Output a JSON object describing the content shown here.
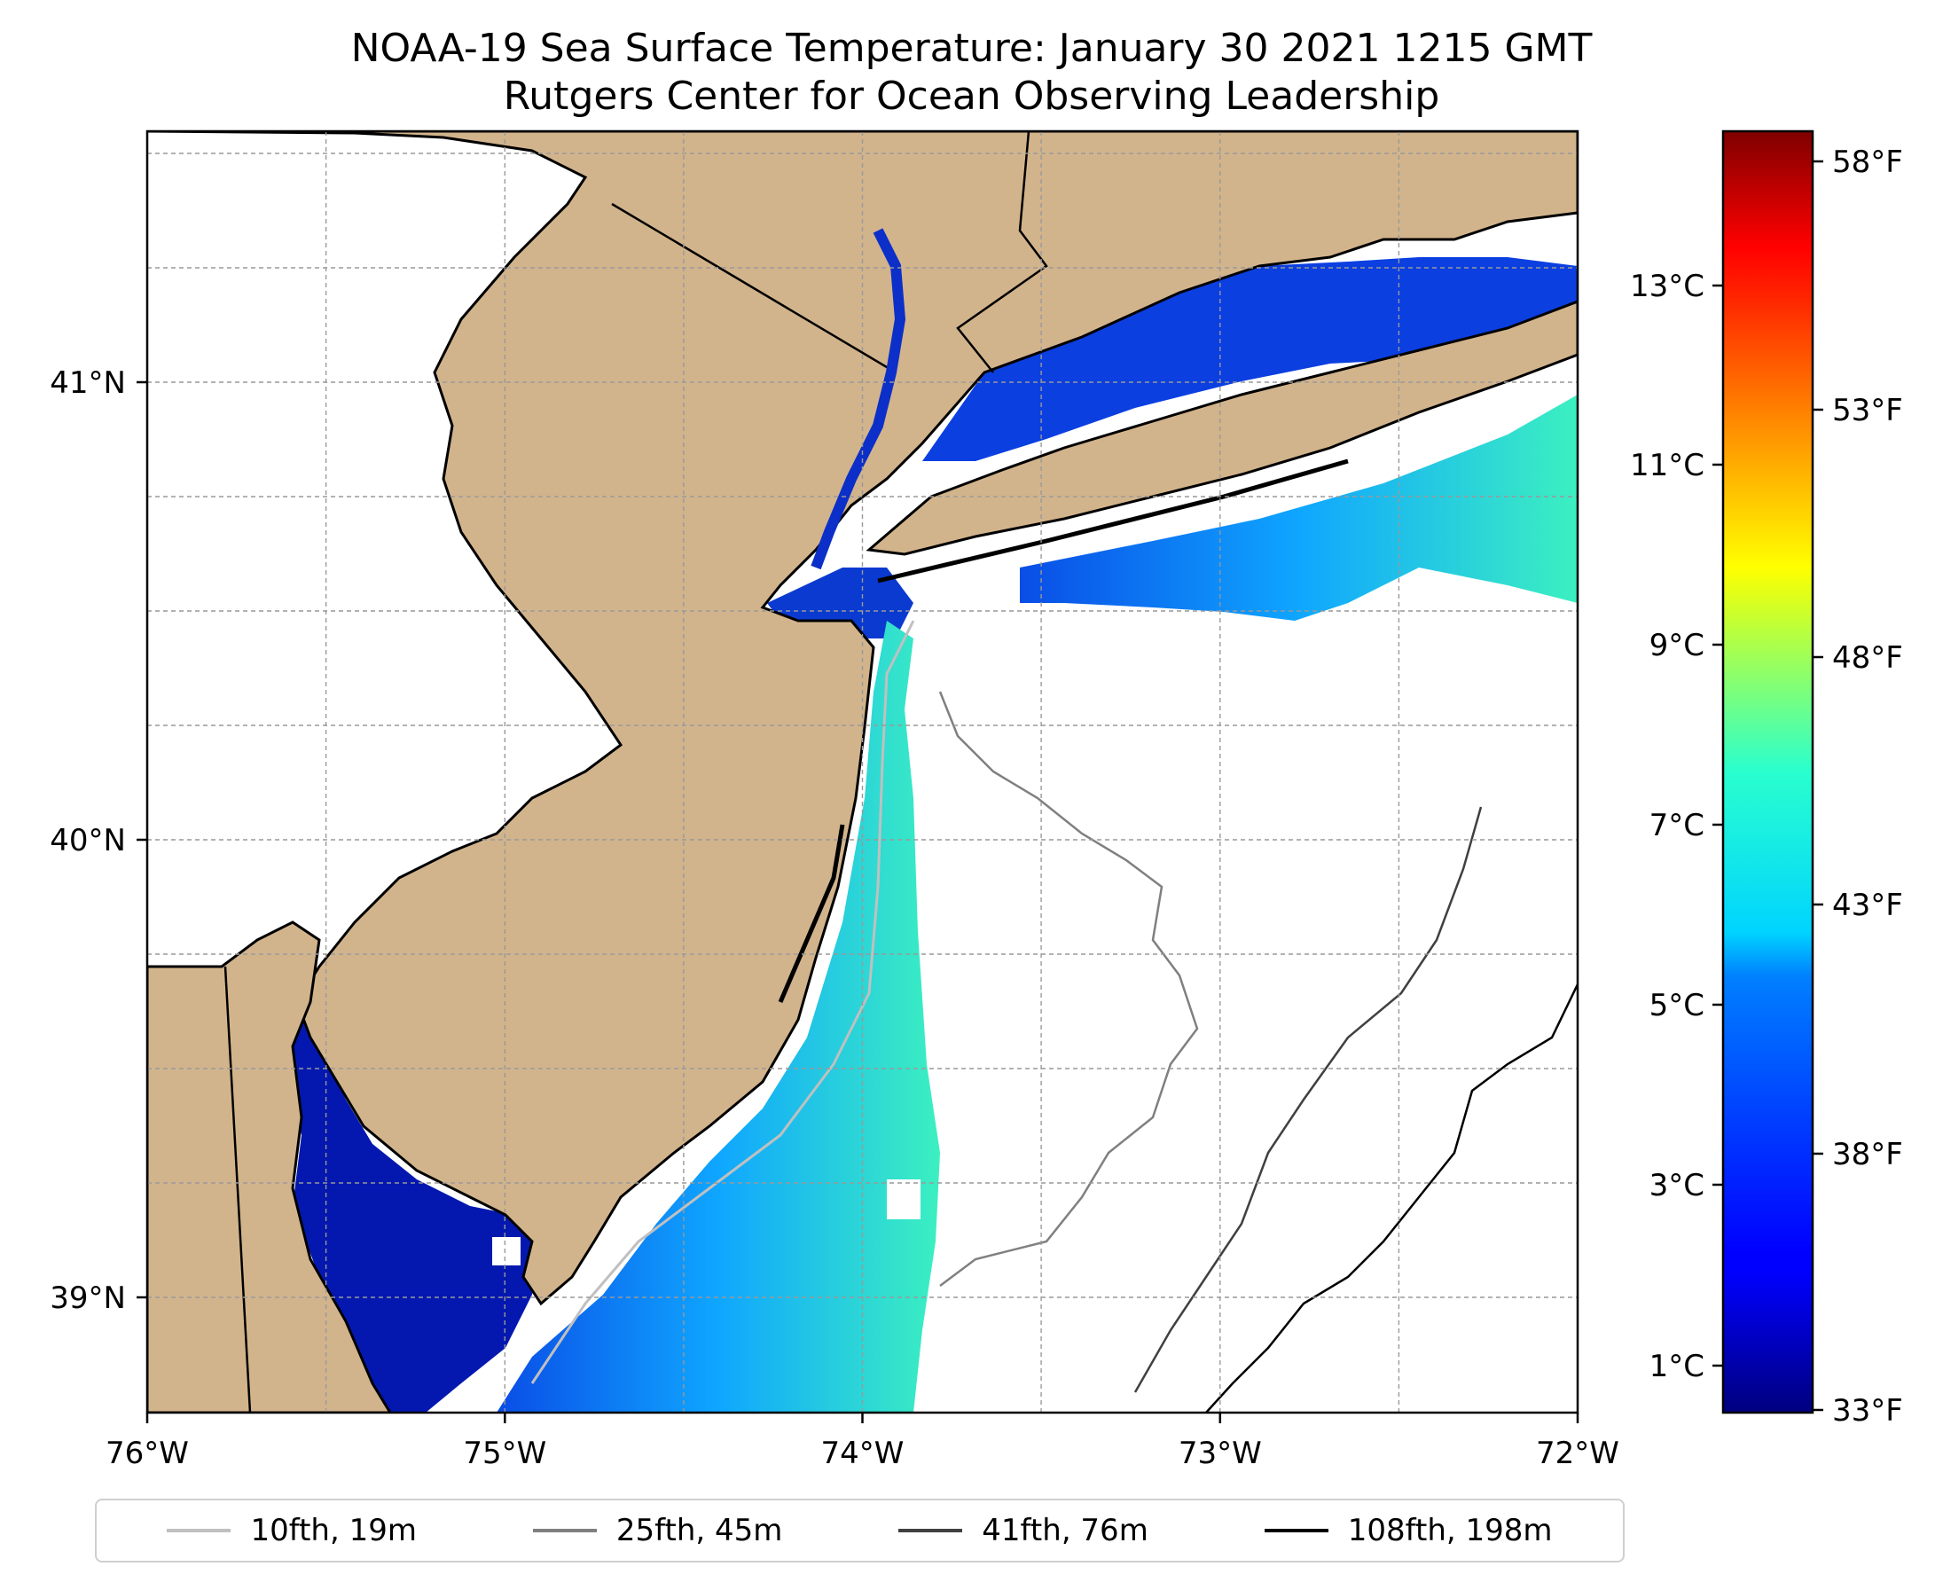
{
  "title": {
    "line1": "NOAA-19 Sea Surface Temperature: January 30 2021 1215 GMT",
    "line2": "Rutgers Center for Ocean Observing Leadership"
  },
  "map": {
    "lon_range": [
      -76,
      -72
    ],
    "lat_range": [
      38.75,
      41.55
    ],
    "x_ticks": [
      "76°W",
      "75°W",
      "74°W",
      "73°W",
      "72°W"
    ],
    "y_ticks": [
      "39°N",
      "40°N",
      "41°N"
    ],
    "land_color": "#d2b48c",
    "sea_color": "#ffffff",
    "grid": "dashed"
  },
  "colorbar": {
    "colormap": "jet",
    "celsius_ticks": [
      "1°C",
      "3°C",
      "5°C",
      "7°C",
      "9°C",
      "11°C",
      "13°C"
    ],
    "fahrenheit_ticks": [
      "33°F",
      "38°F",
      "43°F",
      "48°F",
      "53°F",
      "58°F"
    ]
  },
  "legend": {
    "items": [
      {
        "label": "10fth, 19m",
        "color": "#c0c0c0"
      },
      {
        "label": "25fth, 45m",
        "color": "#808080"
      },
      {
        "label": "41fth, 76m",
        "color": "#404040"
      },
      {
        "label": "108fth, 198m",
        "color": "#000000"
      }
    ]
  }
}
